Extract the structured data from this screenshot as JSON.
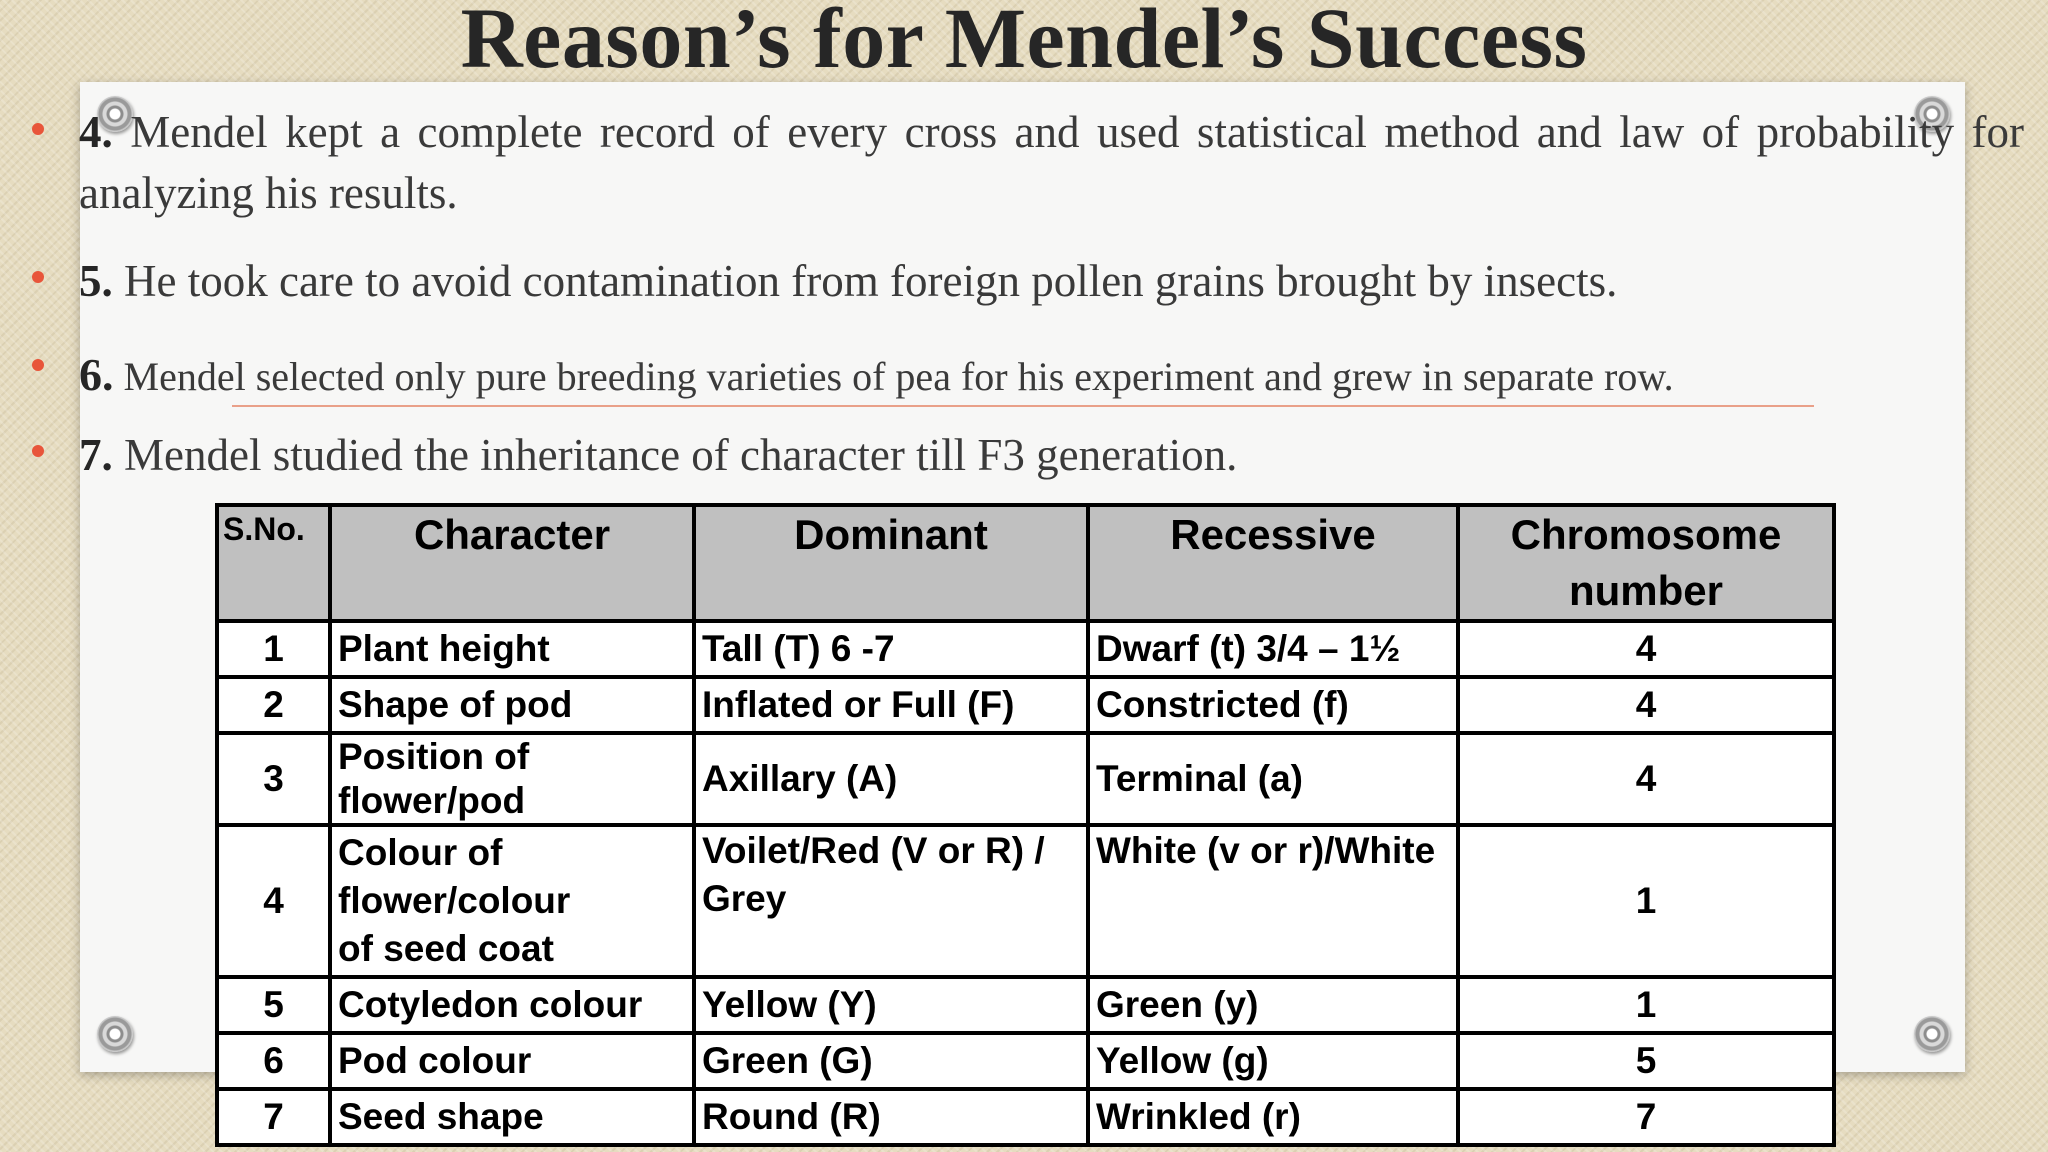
{
  "slide": {
    "title": "Reason’s for Mendel’s Success"
  },
  "points": [
    {
      "num": "4.",
      "text": "Mendel kept a complete record of every cross and used statistical method and law of probability for analyzing his results."
    },
    {
      "num": "5.",
      "text": "He took care to avoid contamination from foreign pollen grains brought by insects."
    },
    {
      "num": "6.",
      "text": "Mendel selected only pure breeding varieties of pea for his experiment and grew in separate row."
    },
    {
      "num": "7.",
      "text": "Mendel studied the inheritance of character till F3 generation."
    }
  ],
  "table": {
    "headers": {
      "sno": "S.No.",
      "character": "Character",
      "dominant": "Dominant",
      "recessive": "Recessive",
      "chromosome": "Chromosome number"
    },
    "rows": [
      {
        "sno": "1",
        "character": "Plant height",
        "dominant": "Tall (T) 6 -7",
        "recessive": "Dwarf (t) 3/4 – 1½",
        "chromosome": "4"
      },
      {
        "sno": "2",
        "character": "Shape of pod",
        "dominant": "Inflated or Full (F)",
        "recessive": "Constricted (f)",
        "chromosome": "4"
      },
      {
        "sno": "3",
        "character": "Position of flower/pod",
        "dominant": "Axillary (A)",
        "recessive": "Terminal (a)",
        "chromosome": "4"
      },
      {
        "sno": "4",
        "character": "Colour of flower/colour of seed coat",
        "dominant": "Voilet/Red (V or R) / Grey",
        "recessive": "White (v or r)/White",
        "chromosome": "1"
      },
      {
        "sno": "5",
        "character": "Cotyledon colour",
        "dominant": "Yellow (Y)",
        "recessive": "Green (y)",
        "chromosome": "1"
      },
      {
        "sno": "6",
        "character": "Pod colour",
        "dominant": "Green (G)",
        "recessive": "Yellow (g)",
        "chromosome": "5"
      },
      {
        "sno": "7",
        "character": "Seed shape",
        "dominant": "Round (R)",
        "recessive": "Wrinkled (r)",
        "chromosome": "7"
      }
    ]
  },
  "colors": {
    "bullet": "#e8553a",
    "header_fill": "#c0c0c0",
    "underline": "#e9a089"
  },
  "icons": [
    "pushpin-icon"
  ]
}
